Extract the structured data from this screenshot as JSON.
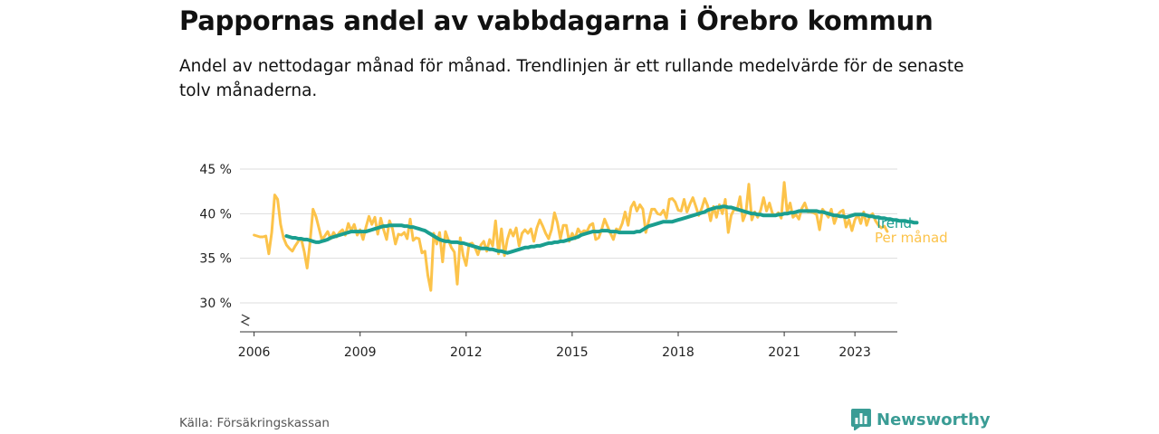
{
  "header": {
    "title": "Pappornas andel av vabbdagarna i Örebro kommun",
    "subtitle": "Andel av nettodagar månad för månad. Trendlinjen är ett rullande medelvärde för de senaste tolv månaderna."
  },
  "footer": {
    "source": "Källa: Försäkringskassan",
    "brand": "Newsworthy",
    "brand_icon": "bar-chart-speech-bubble-icon"
  },
  "colors": {
    "monthly": "#fcc34a",
    "trend": "#1a9e8f",
    "grid": "#dddddd",
    "axis": "#333333",
    "brand": "#3a9c95"
  },
  "chart_data": {
    "type": "line",
    "title": "Pappornas andel av vabbdagarna i Örebro kommun",
    "xlabel": "",
    "ylabel": "",
    "xlim": [
      2005.6,
      2024.2
    ],
    "ylim": [
      30,
      45
    ],
    "y_axis_broken_below": 30,
    "x_ticks": [
      2006,
      2009,
      2012,
      2015,
      2018,
      2021,
      2023
    ],
    "x_tick_labels": [
      "2006",
      "2009",
      "2012",
      "2015",
      "2018",
      "2021",
      "2023"
    ],
    "y_ticks": [
      30,
      35,
      40,
      45
    ],
    "y_tick_labels": [
      "30 %",
      "35 %",
      "40 %",
      "45 %"
    ],
    "grid": "horizontal",
    "legend": "direct-labels-right",
    "series": [
      {
        "name": "Per månad",
        "x_start": 2006.0,
        "x_step": 0.08333,
        "values": [
          37.6,
          37.5,
          37.4,
          37.4,
          37.5,
          35.5,
          37.9,
          42.1,
          41.6,
          38.8,
          37.3,
          36.5,
          36.1,
          35.8,
          36.4,
          36.9,
          37.2,
          35.8,
          33.9,
          36.8,
          40.5,
          39.7,
          38.4,
          37.1,
          37.5,
          38.0,
          37.2,
          37.9,
          37.4,
          37.9,
          38.2,
          37.6,
          38.9,
          38.1,
          38.8,
          37.6,
          38.2,
          37.1,
          38.5,
          39.7,
          38.8,
          39.6,
          37.7,
          39.5,
          38.2,
          37.1,
          39.2,
          38.3,
          36.6,
          37.7,
          37.6,
          37.9,
          37.2,
          39.4,
          37.0,
          37.3,
          37.2,
          35.6,
          35.8,
          33.1,
          31.4,
          37.8,
          36.6,
          37.9,
          34.6,
          38.0,
          37.0,
          36.2,
          35.7,
          32.1,
          37.3,
          35.3,
          34.2,
          36.6,
          36.7,
          36.2,
          35.4,
          36.5,
          36.9,
          35.8,
          37.1,
          36.4,
          39.2,
          35.5,
          38.3,
          35.3,
          37.1,
          38.2,
          37.5,
          38.4,
          36.4,
          37.8,
          38.2,
          37.8,
          38.3,
          36.9,
          38.4,
          39.3,
          38.6,
          37.8,
          37.2,
          38.2,
          40.1,
          39.0,
          37.2,
          38.7,
          38.7,
          36.9,
          37.8,
          37.2,
          38.3,
          37.8,
          38.1,
          38.0,
          38.7,
          38.9,
          37.1,
          37.3,
          38.2,
          39.4,
          38.6,
          37.8,
          37.1,
          38.3,
          38.1,
          38.9,
          40.2,
          38.7,
          40.7,
          41.3,
          40.3,
          41.0,
          40.5,
          37.9,
          39.2,
          40.5,
          40.5,
          40.0,
          39.9,
          40.4,
          39.5,
          41.6,
          41.7,
          41.3,
          40.4,
          40.3,
          41.6,
          40.2,
          41.1,
          41.8,
          40.8,
          39.8,
          40.6,
          41.7,
          40.9,
          39.2,
          40.8,
          39.6,
          41.0,
          40.0,
          41.6,
          37.9,
          39.8,
          40.5,
          40.4,
          41.9,
          39.2,
          40.1,
          43.3,
          39.3,
          40.2,
          39.6,
          40.4,
          41.8,
          40.3,
          41.2,
          40.0,
          39.8,
          40.1,
          39.5,
          43.5,
          40.2,
          41.2,
          39.6,
          39.9,
          39.4,
          40.6,
          41.2,
          40.2,
          40.2,
          40.1,
          39.9,
          38.2,
          40.5,
          40.1,
          39.6,
          40.5,
          38.9,
          39.8,
          40.2,
          40.4,
          38.5,
          39.3,
          38.1,
          39.3,
          39.9,
          38.9,
          40.2,
          38.7,
          39.7,
          40.0,
          39.2,
          38.7,
          38.4,
          38.6,
          38.0
        ]
      },
      {
        "name": "Trend",
        "x_start": 2006.917,
        "x_step": 0.08333,
        "values": [
          37.5,
          37.4,
          37.3,
          37.3,
          37.2,
          37.2,
          37.1,
          37.1,
          37.0,
          36.9,
          36.8,
          36.8,
          36.9,
          37.0,
          37.1,
          37.3,
          37.4,
          37.5,
          37.6,
          37.7,
          37.8,
          37.9,
          38.0,
          38.0,
          38.0,
          38.0,
          38.0,
          38.0,
          38.1,
          38.2,
          38.3,
          38.4,
          38.5,
          38.6,
          38.6,
          38.7,
          38.7,
          38.7,
          38.7,
          38.7,
          38.6,
          38.6,
          38.5,
          38.5,
          38.4,
          38.3,
          38.2,
          38.1,
          37.9,
          37.7,
          37.5,
          37.3,
          37.1,
          37.0,
          36.9,
          36.9,
          36.8,
          36.8,
          36.8,
          36.7,
          36.7,
          36.6,
          36.5,
          36.4,
          36.3,
          36.2,
          36.1,
          36.1,
          36.1,
          36.0,
          36.0,
          35.9,
          35.8,
          35.8,
          35.7,
          35.6,
          35.7,
          35.8,
          35.9,
          36.0,
          36.1,
          36.2,
          36.2,
          36.3,
          36.3,
          36.4,
          36.4,
          36.5,
          36.6,
          36.7,
          36.7,
          36.8,
          36.8,
          36.9,
          36.9,
          37.0,
          37.1,
          37.2,
          37.3,
          37.4,
          37.6,
          37.7,
          37.8,
          37.9,
          38.0,
          38.0,
          38.0,
          38.1,
          38.1,
          38.1,
          38.0,
          38.0,
          38.0,
          37.9,
          37.9,
          37.9,
          37.9,
          37.9,
          37.9,
          38.0,
          38.0,
          38.2,
          38.4,
          38.6,
          38.7,
          38.8,
          38.9,
          39.0,
          39.1,
          39.1,
          39.1,
          39.1,
          39.2,
          39.3,
          39.4,
          39.5,
          39.6,
          39.7,
          39.8,
          39.9,
          40.0,
          40.1,
          40.2,
          40.4,
          40.5,
          40.6,
          40.7,
          40.7,
          40.8,
          40.8,
          40.7,
          40.7,
          40.6,
          40.5,
          40.4,
          40.3,
          40.2,
          40.1,
          40.0,
          40.0,
          39.9,
          39.9,
          39.8,
          39.8,
          39.8,
          39.8,
          39.8,
          39.9,
          39.9,
          40.0,
          40.0,
          40.1,
          40.1,
          40.2,
          40.3,
          40.3,
          40.3,
          40.3,
          40.3,
          40.3,
          40.3,
          40.2,
          40.2,
          40.1,
          40.0,
          39.9,
          39.8,
          39.8,
          39.7,
          39.7,
          39.6,
          39.7,
          39.8,
          39.9,
          39.9,
          39.9,
          39.9,
          39.8,
          39.7,
          39.7,
          39.6,
          39.6,
          39.5,
          39.5,
          39.4,
          39.4,
          39.3,
          39.3,
          39.2,
          39.2,
          39.2,
          39.1,
          39.1,
          39.0,
          39.0
        ]
      }
    ]
  }
}
